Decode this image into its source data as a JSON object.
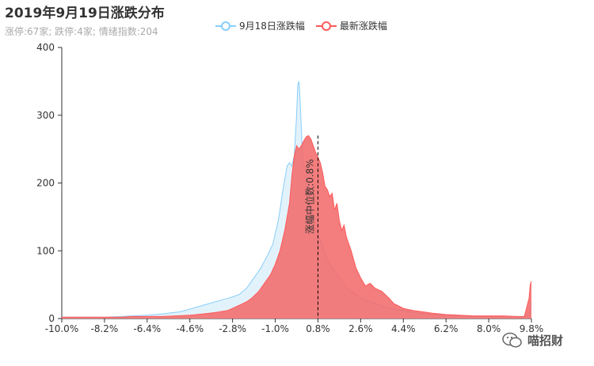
{
  "chart_data": {
    "type": "area",
    "title": "2019年9月19日涨跌分布",
    "subtitle": "涨停:67家; 跌停:4家; 情绪指数:204",
    "x_tick_labels": [
      "-10.0%",
      "-8.2%",
      "-6.4%",
      "-4.6%",
      "-2.8%",
      "-1.0%",
      "0.8%",
      "2.6%",
      "4.4%",
      "6.2%",
      "8.0%",
      "9.8%"
    ],
    "x_tick_values": [
      -10.0,
      -8.2,
      -6.4,
      -4.6,
      -2.8,
      -1.0,
      0.8,
      2.6,
      4.4,
      6.2,
      8.0,
      9.8
    ],
    "xlim": [
      -10.0,
      9.8
    ],
    "ylim": [
      0,
      400
    ],
    "y_ticks": [
      0,
      100,
      200,
      300,
      400
    ],
    "grid": false,
    "legend_position": "top-center",
    "series": [
      {
        "name": "9月18日涨跌幅",
        "color": "#87cefa",
        "fill": "#dff1fb",
        "x": [
          -10.0,
          -9.0,
          -8.2,
          -7.5,
          -7.0,
          -6.4,
          -6.0,
          -5.5,
          -5.0,
          -4.6,
          -4.2,
          -3.8,
          -3.4,
          -3.0,
          -2.8,
          -2.5,
          -2.2,
          -2.0,
          -1.8,
          -1.6,
          -1.5,
          -1.3,
          -1.1,
          -1.0,
          -0.9,
          -0.8,
          -0.7,
          -0.6,
          -0.5,
          -0.4,
          -0.3,
          -0.2,
          -0.15,
          -0.1,
          -0.05,
          0.0,
          0.05,
          0.1,
          0.15,
          0.2,
          0.3,
          0.4,
          0.5,
          0.6,
          0.8,
          1.0,
          1.2,
          1.5,
          1.8,
          2.0,
          2.3,
          2.6,
          3.0,
          3.4,
          3.8,
          4.4,
          5.0,
          5.6,
          6.2,
          7.0,
          8.0,
          9.0,
          9.5,
          9.7,
          9.75,
          9.8
        ],
        "y": [
          2,
          2,
          2,
          3,
          4,
          5,
          6,
          8,
          10,
          14,
          18,
          22,
          26,
          30,
          32,
          36,
          45,
          55,
          65,
          75,
          82,
          95,
          110,
          125,
          140,
          160,
          185,
          205,
          225,
          230,
          225,
          240,
          270,
          300,
          345,
          350,
          320,
          280,
          240,
          225,
          215,
          195,
          170,
          145,
          125,
          105,
          85,
          70,
          55,
          45,
          38,
          30,
          25,
          20,
          15,
          12,
          8,
          6,
          5,
          4,
          3,
          3,
          3,
          8,
          15,
          20
        ]
      },
      {
        "name": "最新涨跌幅",
        "color": "#ff5a5a",
        "fill": "#f36b6b",
        "x": [
          -10.0,
          -9.0,
          -8.2,
          -7.5,
          -7.0,
          -6.4,
          -5.8,
          -5.2,
          -4.6,
          -4.0,
          -3.5,
          -3.0,
          -2.8,
          -2.5,
          -2.2,
          -2.0,
          -1.7,
          -1.5,
          -1.2,
          -1.0,
          -0.8,
          -0.6,
          -0.4,
          -0.3,
          -0.2,
          -0.1,
          0.0,
          0.1,
          0.2,
          0.3,
          0.4,
          0.5,
          0.6,
          0.7,
          0.8,
          0.9,
          1.0,
          1.1,
          1.2,
          1.3,
          1.4,
          1.5,
          1.6,
          1.7,
          1.8,
          1.9,
          2.0,
          2.2,
          2.4,
          2.6,
          2.8,
          3.0,
          3.2,
          3.5,
          3.8,
          4.0,
          4.4,
          4.8,
          5.2,
          5.6,
          6.2,
          6.8,
          7.4,
          8.0,
          8.6,
          9.2,
          9.5,
          9.7,
          9.75,
          9.8
        ],
        "y": [
          2,
          2,
          2,
          2,
          3,
          3,
          3,
          4,
          5,
          7,
          9,
          12,
          15,
          20,
          25,
          30,
          40,
          50,
          65,
          80,
          100,
          130,
          170,
          210,
          240,
          255,
          250,
          255,
          262,
          268,
          270,
          265,
          255,
          245,
          238,
          230,
          215,
          195,
          190,
          180,
          185,
          160,
          170,
          145,
          130,
          138,
          120,
          100,
          75,
          60,
          48,
          52,
          45,
          40,
          30,
          22,
          15,
          12,
          10,
          8,
          6,
          5,
          4,
          4,
          4,
          3,
          3,
          30,
          50,
          55
        ]
      }
    ],
    "markline": {
      "x": 0.8,
      "label": "涨幅中位数:0.8%"
    }
  },
  "watermark": {
    "text": "喵招财"
  }
}
